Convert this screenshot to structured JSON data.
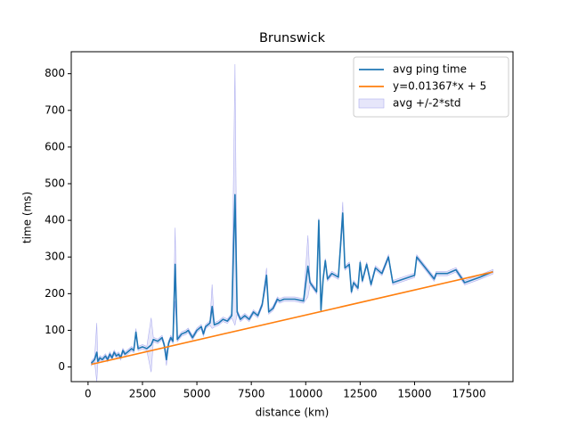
{
  "chart_data": {
    "type": "line",
    "title": "Brunswick",
    "xlabel": "distance (km)",
    "ylabel": "time (ms)",
    "xlim": [
      -772,
      19522
    ],
    "ylim": [
      -40,
      860
    ],
    "xticks": [
      0,
      2500,
      5000,
      7500,
      10000,
      12500,
      15000,
      17500
    ],
    "yticks": [
      0,
      100,
      200,
      300,
      400,
      500,
      600,
      700,
      800
    ],
    "legend": "upper right",
    "series": [
      {
        "name": "avg ping time",
        "color": "#1f77b4",
        "x": [
          150,
          300,
          400,
          450,
          550,
          650,
          800,
          900,
          1000,
          1100,
          1200,
          1300,
          1400,
          1500,
          1600,
          1700,
          1800,
          2000,
          2100,
          2200,
          2300,
          2500,
          2700,
          2900,
          3000,
          3200,
          3400,
          3500,
          3600,
          3700,
          3800,
          3900,
          4000,
          4100,
          4300,
          4500,
          4600,
          4800,
          5000,
          5200,
          5300,
          5400,
          5600,
          5700,
          5800,
          6000,
          6200,
          6400,
          6600,
          6750,
          6850,
          7000,
          7200,
          7400,
          7600,
          7800,
          8000,
          8200,
          8300,
          8500,
          8700,
          8800,
          9000,
          9500,
          9900,
          10100,
          10200,
          10500,
          10600,
          10700,
          10800,
          10900,
          11000,
          11200,
          11500,
          11700,
          11800,
          12000,
          12100,
          12200,
          12400,
          12500,
          12600,
          12800,
          13000,
          13200,
          13500,
          13800,
          14000,
          15000,
          15100,
          15500,
          15900,
          16000,
          16500,
          16900,
          17300,
          18000,
          18600
        ],
        "values": [
          10,
          20,
          40,
          15,
          25,
          20,
          30,
          20,
          35,
          25,
          40,
          30,
          35,
          25,
          45,
          35,
          40,
          50,
          45,
          95,
          50,
          55,
          50,
          60,
          75,
          70,
          80,
          60,
          20,
          65,
          80,
          70,
          280,
          75,
          90,
          95,
          100,
          80,
          100,
          110,
          90,
          110,
          120,
          165,
          115,
          120,
          130,
          125,
          140,
          470,
          150,
          130,
          140,
          130,
          150,
          140,
          170,
          250,
          150,
          160,
          185,
          180,
          185,
          185,
          180,
          275,
          230,
          205,
          400,
          155,
          240,
          290,
          240,
          255,
          245,
          420,
          270,
          280,
          205,
          230,
          215,
          285,
          235,
          280,
          225,
          270,
          255,
          300,
          230,
          250,
          300,
          270,
          240,
          255,
          255,
          265,
          230,
          245,
          260
        ]
      },
      {
        "name": "y=0.01367*x + 5",
        "color": "#ff7f0e",
        "x": [
          150,
          18600
        ],
        "values": [
          7.05,
          259.3
        ]
      }
    ],
    "band": {
      "name": "avg +/-2*std",
      "color": "#e6e6fa",
      "edge": "#b0b0f0",
      "lower": [
        4,
        14,
        -40,
        9,
        19,
        14,
        24,
        14,
        29,
        19,
        34,
        24,
        29,
        19,
        39,
        29,
        34,
        44,
        39,
        85,
        44,
        49,
        44,
        -14,
        69,
        64,
        74,
        54,
        4,
        59,
        74,
        64,
        180,
        69,
        84,
        89,
        94,
        74,
        94,
        104,
        84,
        104,
        114,
        105,
        109,
        114,
        124,
        119,
        134,
        114,
        144,
        124,
        134,
        124,
        144,
        134,
        164,
        230,
        144,
        154,
        179,
        174,
        179,
        179,
        174,
        191,
        224,
        199,
        394,
        149,
        234,
        284,
        234,
        249,
        239,
        390,
        264,
        274,
        199,
        224,
        209,
        279,
        229,
        274,
        219,
        264,
        249,
        294,
        224,
        244,
        294,
        264,
        234,
        249,
        249,
        259,
        224,
        239,
        254
      ],
      "upper": [
        16,
        26,
        120,
        21,
        31,
        26,
        36,
        26,
        41,
        31,
        46,
        36,
        41,
        31,
        51,
        41,
        46,
        56,
        51,
        105,
        56,
        61,
        56,
        134,
        81,
        76,
        86,
        66,
        36,
        71,
        86,
        76,
        380,
        81,
        96,
        101,
        106,
        86,
        106,
        116,
        96,
        116,
        126,
        225,
        121,
        126,
        136,
        131,
        146,
        826,
        156,
        136,
        146,
        136,
        156,
        146,
        176,
        270,
        156,
        166,
        191,
        186,
        191,
        191,
        186,
        359,
        236,
        211,
        406,
        161,
        246,
        296,
        246,
        261,
        251,
        450,
        276,
        286,
        211,
        236,
        221,
        291,
        241,
        286,
        231,
        276,
        261,
        306,
        236,
        256,
        306,
        276,
        246,
        261,
        261,
        271,
        236,
        251,
        266
      ]
    }
  }
}
